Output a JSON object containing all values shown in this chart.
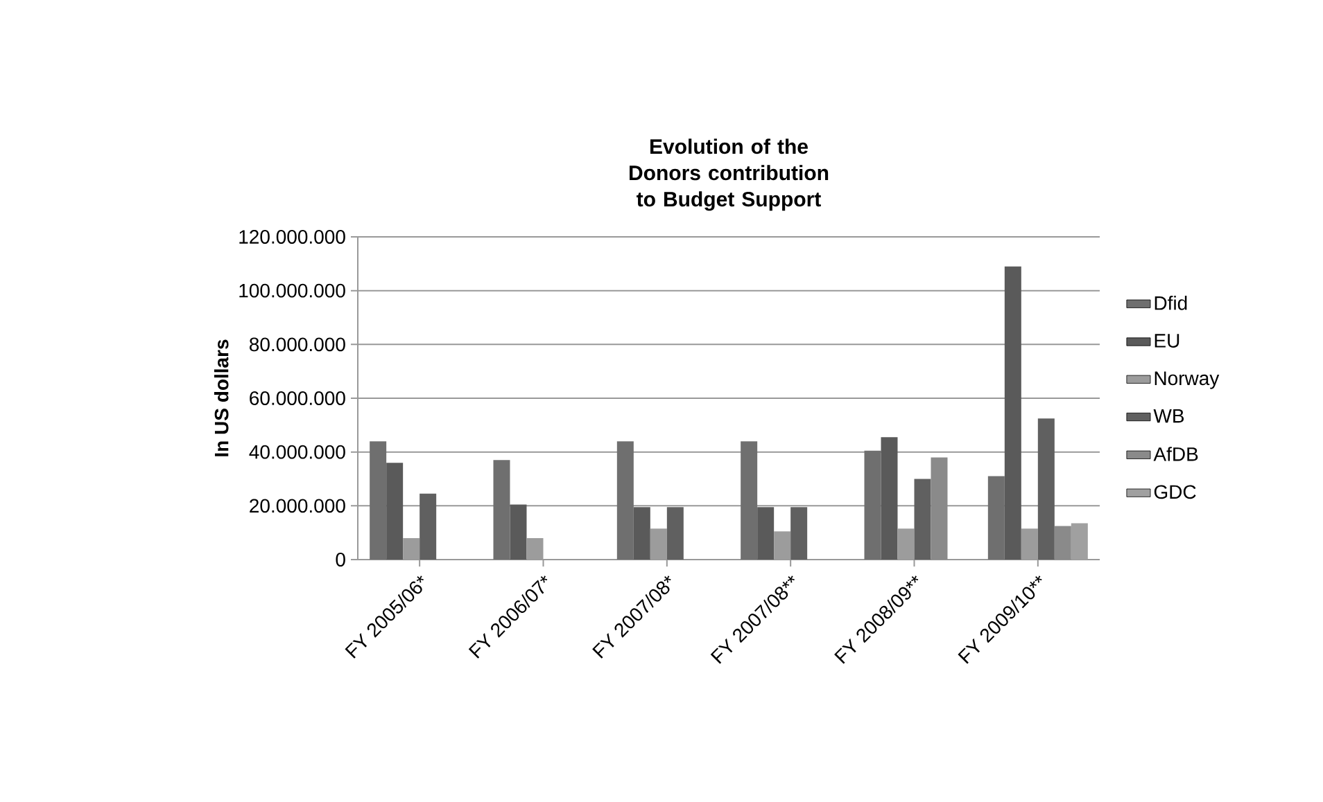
{
  "chart_data": {
    "type": "bar",
    "title": "Evolution of the Donors contribution to Budget Support",
    "ylabel": "In US dollars",
    "categories": [
      "FY 2005/06*",
      "FY 2006/07*",
      "FY 2007/08*",
      "FY 2007/08**",
      "FY 2008/09**",
      "FY 2009/10**"
    ],
    "series": [
      {
        "name": "Dfid",
        "color": "#6f6f6f",
        "values": [
          44000000,
          37000000,
          44000000,
          44000000,
          40500000,
          31000000
        ]
      },
      {
        "name": "EU",
        "color": "#5a5a5a",
        "values": [
          36000000,
          20500000,
          19500000,
          19500000,
          45500000,
          109000000
        ]
      },
      {
        "name": "Norway",
        "color": "#9c9c9c",
        "values": [
          8000000,
          8000000,
          11500000,
          10500000,
          11500000,
          11500000
        ]
      },
      {
        "name": "WB",
        "color": "#606060",
        "values": [
          24500000,
          null,
          19500000,
          19500000,
          30000000,
          52500000
        ]
      },
      {
        "name": "AfDB",
        "color": "#8a8a8a",
        "values": [
          null,
          null,
          null,
          null,
          38000000,
          12500000
        ]
      },
      {
        "name": "GDC",
        "color": "#a0a0a0",
        "values": [
          null,
          null,
          null,
          null,
          null,
          13500000
        ]
      }
    ],
    "ylim": [
      0,
      120000000
    ],
    "yticks": [
      0,
      {
        "value": 20000000,
        "label": "20.000.000"
      },
      {
        "value": 40000000,
        "label": "40.000.000"
      },
      {
        "value": 60000000,
        "label": "60.000.000"
      },
      {
        "value": 80000000,
        "label": "80.000.000"
      },
      {
        "value": 100000000,
        "label": "100.000.000"
      },
      {
        "value": 120000000,
        "label": "120.000.000"
      }
    ],
    "grid": "y",
    "legend": "right"
  }
}
